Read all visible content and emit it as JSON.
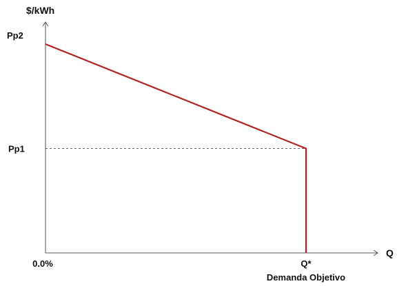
{
  "chart_data": {
    "type": "line",
    "ylabel": "$/kWh",
    "xlabel": "Q",
    "x_tick_labels": {
      "origin": "0.0%",
      "target": "Q*",
      "target_caption": "Demanda Objetivo"
    },
    "y_tick_labels": {
      "high": "Pp2",
      "low": "Pp1"
    },
    "xlim": [
      0,
      1.2
    ],
    "ylim": [
      0,
      1.1
    ],
    "reference_values": {
      "x_origin": 0,
      "x_target": 1,
      "y_low": 0.5,
      "y_high": 1.0
    },
    "series": [
      {
        "points": [
          {
            "x": 0,
            "y": 1.0
          },
          {
            "x": 1,
            "y": 0.5
          },
          {
            "x": 1,
            "y": 0
          }
        ]
      }
    ],
    "reference_lines": [
      {
        "type": "horizontal_dashed",
        "y": 0.5,
        "from_x": 0,
        "to_x": 1
      }
    ],
    "grid": false,
    "legend": "none",
    "colors": {
      "series": "#b22222",
      "axis": "#555555",
      "text": "#111111"
    }
  }
}
